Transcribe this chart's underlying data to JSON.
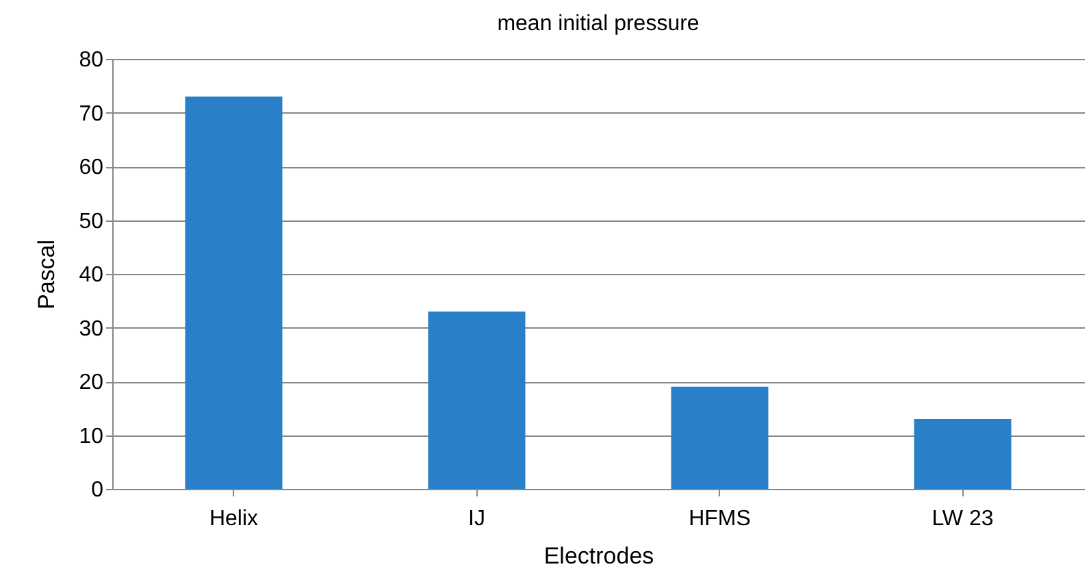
{
  "chart_data": {
    "type": "bar",
    "title": "mean initial pressure",
    "xlabel": "Electrodes",
    "ylabel": "Pascal",
    "categories": [
      "Helix",
      "IJ",
      "HFMS",
      "LW 23"
    ],
    "values": [
      73,
      33,
      19,
      13
    ],
    "color": "#2a80c8",
    "ylim": [
      0,
      80
    ],
    "yticks": [
      0,
      10,
      20,
      30,
      40,
      50,
      60,
      70,
      80
    ],
    "grid": "y"
  }
}
